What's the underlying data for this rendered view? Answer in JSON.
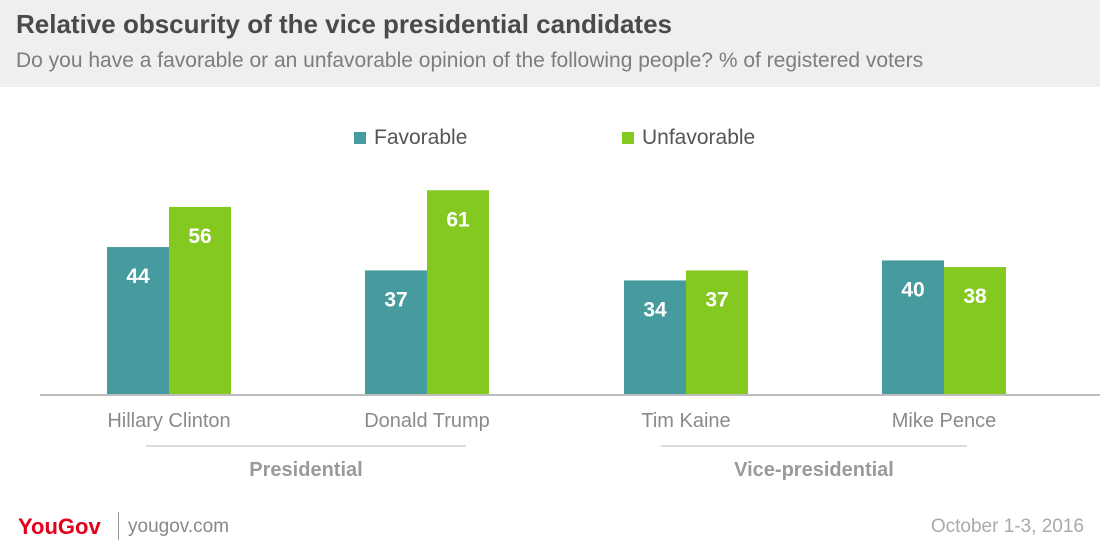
{
  "header": {
    "title": "Relative obscurity of the vice presidential candidates",
    "subtitle": "Do you have a favorable or an unfavorable opinion of the following people? % of registered voters"
  },
  "chart_data": {
    "type": "bar",
    "categories": [
      "Hillary Clinton",
      "Donald Trump",
      "Tim Kaine",
      "Mike Pence"
    ],
    "series": [
      {
        "name": "Favorable",
        "values": [
          44,
          37,
          34,
          40
        ],
        "color": "#459b9d"
      },
      {
        "name": "Unfavorable",
        "values": [
          56,
          61,
          37,
          38
        ],
        "color": "#84c91f"
      }
    ],
    "groups": [
      {
        "label": "Presidential",
        "categories": [
          "Hillary Clinton",
          "Donald Trump"
        ]
      },
      {
        "label": "Vice-presidential",
        "categories": [
          "Tim Kaine",
          "Mike Pence"
        ]
      }
    ],
    "ylim": [
      0,
      100
    ],
    "grid": false,
    "legend_position": "top-center"
  },
  "footer": {
    "logo": "YouGov",
    "site": "yougov.com",
    "date": "October 1-3, 2016"
  }
}
